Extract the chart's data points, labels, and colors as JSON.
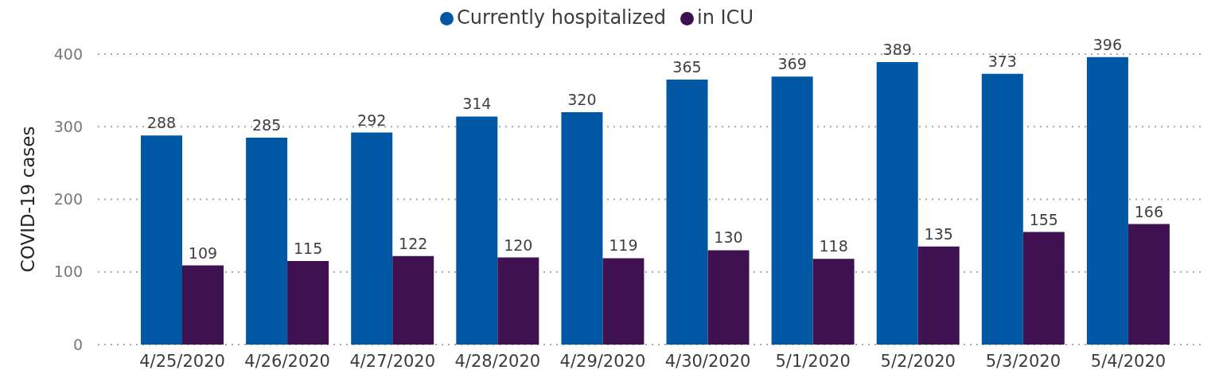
{
  "chart_data": {
    "type": "bar",
    "categories": [
      "4/25/2020",
      "4/26/2020",
      "4/27/2020",
      "4/28/2020",
      "4/29/2020",
      "4/30/2020",
      "5/1/2020",
      "5/2/2020",
      "5/3/2020",
      "5/4/2020"
    ],
    "series": [
      {
        "name": "Currently hospitalized",
        "color": "#0057a3",
        "values": [
          288,
          285,
          292,
          314,
          320,
          365,
          369,
          389,
          373,
          396
        ]
      },
      {
        "name": "in ICU",
        "color": "#3f1150",
        "values": [
          109,
          115,
          122,
          120,
          119,
          130,
          118,
          135,
          155,
          166
        ]
      }
    ],
    "ylabel": "COVID-19 cases",
    "ylim": [
      0,
      400
    ],
    "yticks": [
      0,
      100,
      200,
      300,
      400
    ],
    "grid": "y",
    "legend": "top",
    "data_labels": true
  }
}
